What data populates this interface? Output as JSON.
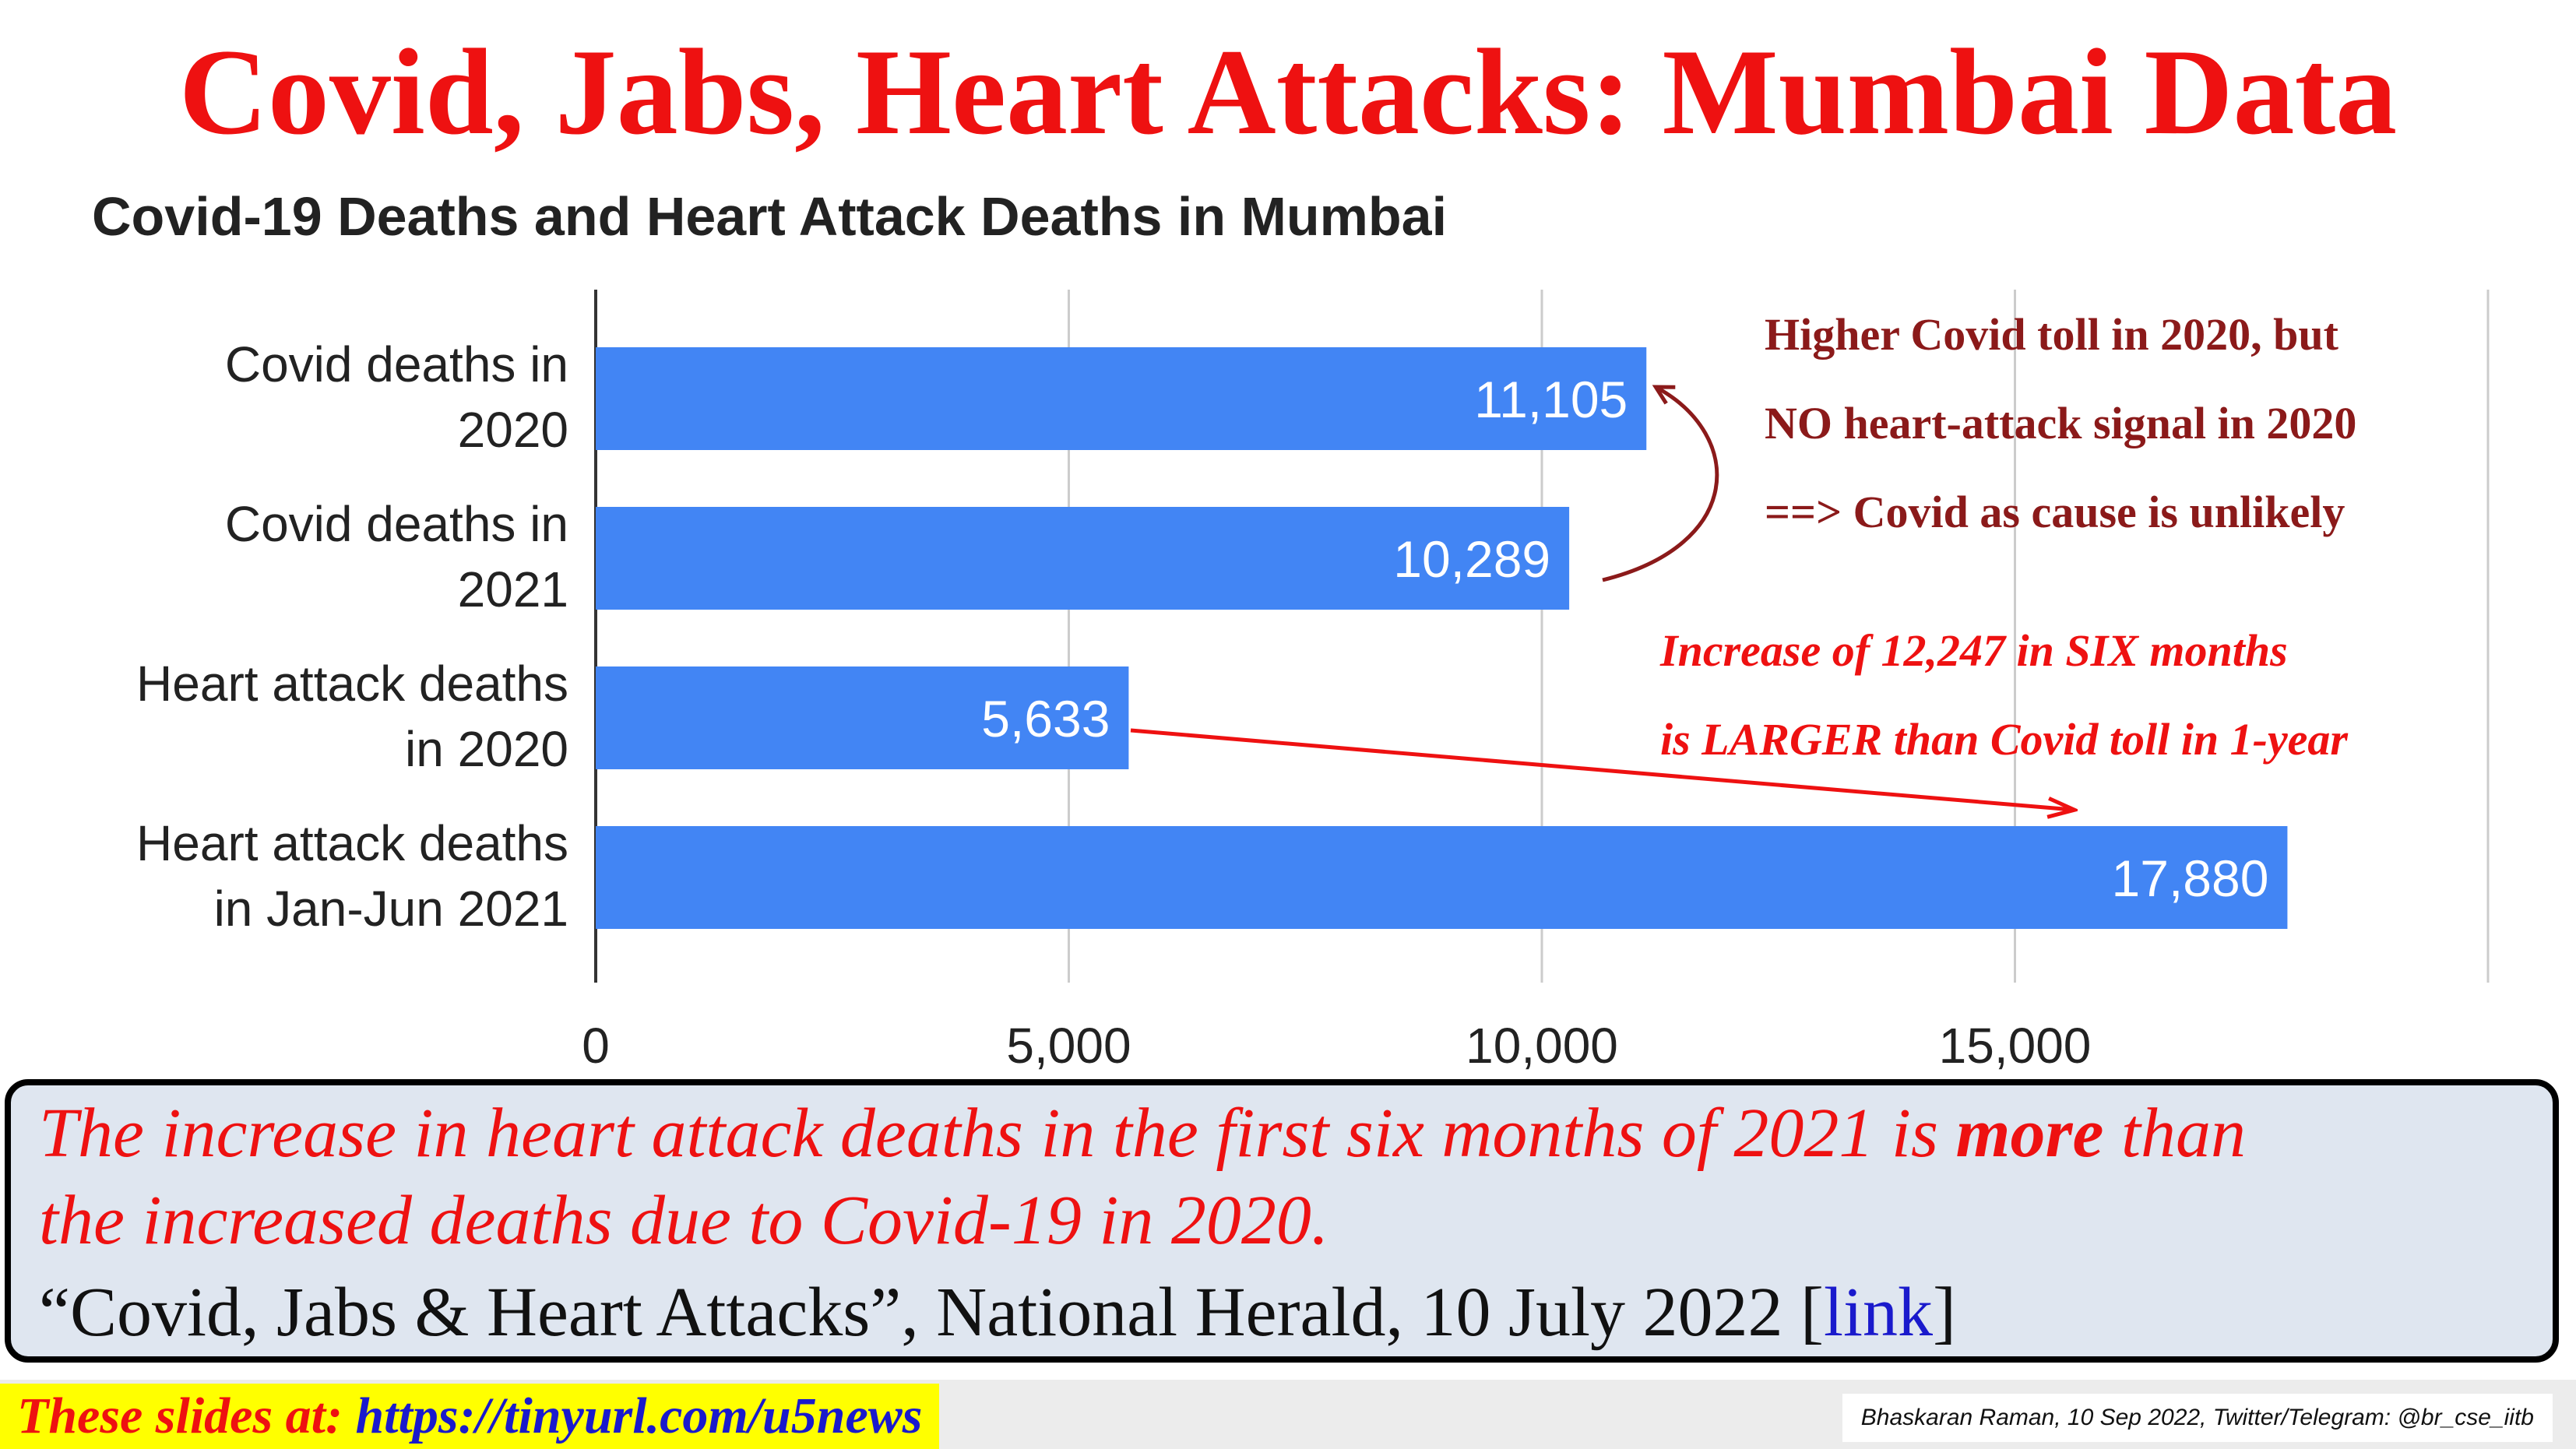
{
  "slide": {
    "title": "Covid, Jabs, Heart Attacks: Mumbai Data"
  },
  "chart_data": {
    "type": "bar",
    "orientation": "horizontal",
    "title": "Covid-19 Deaths and Heart Attack Deaths in Mumbai",
    "categories": [
      [
        "Covid deaths in",
        "2020"
      ],
      [
        "Covid deaths in",
        "2021"
      ],
      [
        "Heart attack deaths",
        "in 2020"
      ],
      [
        "Heart attack deaths",
        "in Jan-Jun 2021"
      ]
    ],
    "values": [
      11105,
      10289,
      5633,
      17880
    ],
    "value_labels": [
      "11,105",
      "10,289",
      "5,633",
      "17,880"
    ],
    "xlim": [
      0,
      20000
    ],
    "xticks": [
      0,
      5000,
      10000,
      15000
    ],
    "xtick_labels": [
      "0",
      "5,000",
      "10,000",
      "15,000"
    ],
    "grid": true,
    "bar_color": "#4285f4"
  },
  "annotations": {
    "covid_note": [
      "Higher Covid toll in 2020, but",
      "NO heart-attack signal in 2020",
      "==> Covid as cause is unlikely"
    ],
    "increase_note": [
      "Increase of 12,247 in SIX months",
      "is LARGER than Covid toll in 1-year"
    ],
    "dark_color": "#8b1a1a",
    "red_color": "#ee1111"
  },
  "summary": {
    "line1_pre": "The increase in heart attack deaths in the first six months of 2021 is ",
    "line1_bold": "more",
    "line1_post": " than",
    "line2": "the increased deaths due to Covid-19 in 2020.",
    "citation": "“Covid, Jabs & Heart Attacks”, National Herald, 10 July 2022 [",
    "link_text": "link",
    "citation_end": "]"
  },
  "footer": {
    "slides_prefix": "These slides at: ",
    "slides_url": "https://tinyurl.com/u5news",
    "credit": "Bhaskaran Raman, 10 Sep 2022, Twitter/Telegram: @br_cse_iitb"
  }
}
